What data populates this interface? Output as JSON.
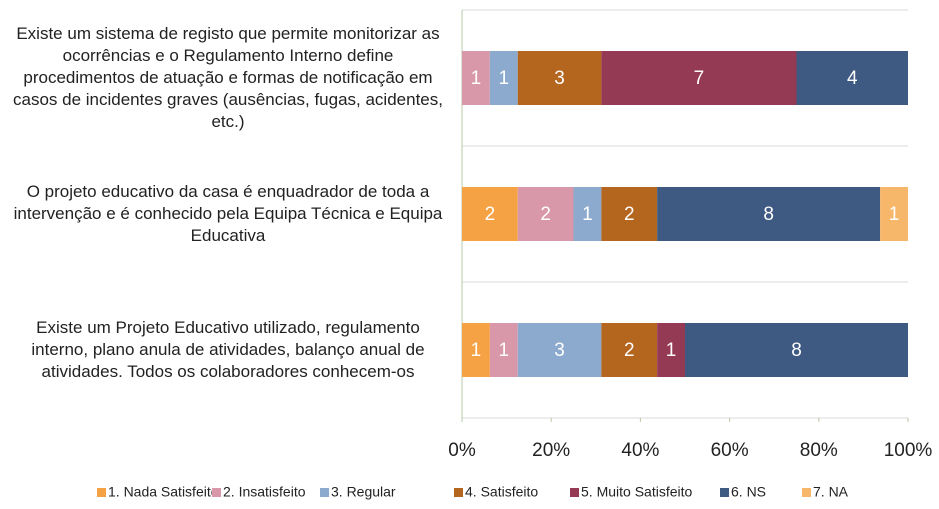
{
  "chart_data": {
    "type": "bar",
    "orientation": "horizontal",
    "stacking": "percent",
    "categories": [
      "Existe um sistema de registo que permite monitorizar as ocorrências e o Regulamento Interno define procedimentos de atuação e formas de notificação em casos de incidentes graves (ausências, fugas, acidentes, etc.)",
      "O projeto educativo da casa é enquadrador de toda a intervenção e é conhecido pela Equipa Técnica e Equipa Educativa",
      "Existe um Projeto Educativo utilizado, regulamento interno, plano anula de atividades, balanço anual de atividades. Todos os colaboradores conhecem-os"
    ],
    "series": [
      {
        "name": "1. Nada Satisfeito",
        "color": "#f5a244",
        "values": [
          0,
          2,
          1
        ]
      },
      {
        "name": "2. Insatisfeito",
        "color": "#d898a9",
        "values": [
          1,
          2,
          1
        ]
      },
      {
        "name": "3. Regular",
        "color": "#8caacd",
        "values": [
          1,
          1,
          3
        ]
      },
      {
        "name": "4. Satisfeito",
        "color": "#b4651e",
        "values": [
          3,
          2,
          2
        ]
      },
      {
        "name": "5. Muito Satisfeito",
        "color": "#953a55",
        "values": [
          7,
          0,
          1
        ]
      },
      {
        "name": "6. NS",
        "color": "#3e5a83",
        "values": [
          4,
          8,
          8
        ]
      },
      {
        "name": "7. NA",
        "color": "#f6b76a",
        "values": [
          0,
          1,
          0
        ]
      }
    ],
    "xlim": [
      0,
      100
    ],
    "xticks": [
      {
        "value": 0,
        "label": "0%"
      },
      {
        "value": 20,
        "label": "20%"
      },
      {
        "value": 40,
        "label": "40%"
      },
      {
        "value": 60,
        "label": "60%"
      },
      {
        "value": 80,
        "label": "80%"
      },
      {
        "value": 100,
        "label": "100%"
      }
    ],
    "legend": "bottom"
  }
}
